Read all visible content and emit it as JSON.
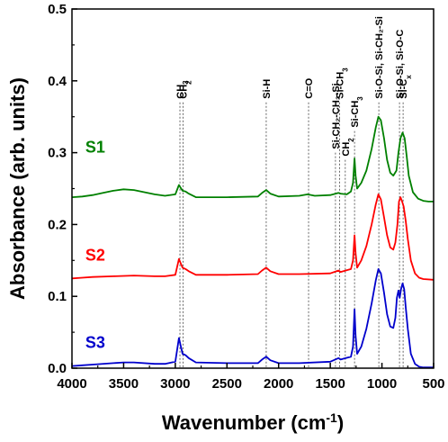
{
  "chart_data": {
    "type": "line",
    "xlabel": "Wavenumber (cm⁻¹)",
    "ylabel": "Absorbance (arb. units)",
    "xlim": [
      4000,
      500
    ],
    "ylim": [
      0,
      0.5
    ],
    "x_reversed": true,
    "grid": false,
    "legend": "none",
    "x_ticks": [
      4000,
      3500,
      3000,
      2500,
      2000,
      1500,
      1000,
      500
    ],
    "y_ticks": [
      0.0,
      0.1,
      0.2,
      0.3,
      0.4,
      0.5
    ],
    "y_tick_labels": [
      "0.0",
      "0.1",
      "0.2",
      "0.3",
      "0.4",
      "0.5"
    ],
    "series": [
      {
        "name": "S1",
        "color": "#008000",
        "label_pos": [
          3870,
          0.3
        ],
        "points": [
          [
            4000,
            0.238
          ],
          [
            3900,
            0.239
          ],
          [
            3800,
            0.241
          ],
          [
            3700,
            0.244
          ],
          [
            3600,
            0.247
          ],
          [
            3500,
            0.249
          ],
          [
            3400,
            0.248
          ],
          [
            3300,
            0.245
          ],
          [
            3200,
            0.242
          ],
          [
            3100,
            0.24
          ],
          [
            3000,
            0.242
          ],
          [
            2965,
            0.255
          ],
          [
            2930,
            0.247
          ],
          [
            2900,
            0.246
          ],
          [
            2870,
            0.243
          ],
          [
            2800,
            0.238
          ],
          [
            2500,
            0.238
          ],
          [
            2200,
            0.239
          ],
          [
            2160,
            0.244
          ],
          [
            2120,
            0.248
          ],
          [
            2080,
            0.243
          ],
          [
            2000,
            0.239
          ],
          [
            1800,
            0.24
          ],
          [
            1720,
            0.242
          ],
          [
            1650,
            0.24
          ],
          [
            1500,
            0.241
          ],
          [
            1420,
            0.244
          ],
          [
            1400,
            0.243
          ],
          [
            1340,
            0.242
          ],
          [
            1300,
            0.246
          ],
          [
            1280,
            0.258
          ],
          [
            1265,
            0.292
          ],
          [
            1255,
            0.268
          ],
          [
            1240,
            0.25
          ],
          [
            1200,
            0.258
          ],
          [
            1150,
            0.275
          ],
          [
            1100,
            0.305
          ],
          [
            1060,
            0.335
          ],
          [
            1035,
            0.35
          ],
          [
            1010,
            0.345
          ],
          [
            980,
            0.32
          ],
          [
            950,
            0.29
          ],
          [
            920,
            0.272
          ],
          [
            890,
            0.268
          ],
          [
            860,
            0.275
          ],
          [
            840,
            0.3
          ],
          [
            820,
            0.32
          ],
          [
            800,
            0.328
          ],
          [
            780,
            0.32
          ],
          [
            760,
            0.295
          ],
          [
            740,
            0.268
          ],
          [
            700,
            0.245
          ],
          [
            650,
            0.236
          ],
          [
            600,
            0.233
          ],
          [
            550,
            0.232
          ],
          [
            500,
            0.232
          ]
        ]
      },
      {
        "name": "S2",
        "color": "#ff0000",
        "label_pos": [
          3870,
          0.15
        ],
        "points": [
          [
            4000,
            0.125
          ],
          [
            3900,
            0.126
          ],
          [
            3800,
            0.127
          ],
          [
            3600,
            0.128
          ],
          [
            3400,
            0.129
          ],
          [
            3200,
            0.128
          ],
          [
            3100,
            0.128
          ],
          [
            3000,
            0.13
          ],
          [
            2965,
            0.152
          ],
          [
            2930,
            0.14
          ],
          [
            2900,
            0.138
          ],
          [
            2870,
            0.135
          ],
          [
            2800,
            0.13
          ],
          [
            2500,
            0.13
          ],
          [
            2200,
            0.131
          ],
          [
            2160,
            0.136
          ],
          [
            2120,
            0.14
          ],
          [
            2080,
            0.135
          ],
          [
            2000,
            0.131
          ],
          [
            1800,
            0.131
          ],
          [
            1500,
            0.132
          ],
          [
            1420,
            0.136
          ],
          [
            1400,
            0.134
          ],
          [
            1300,
            0.138
          ],
          [
            1280,
            0.15
          ],
          [
            1265,
            0.185
          ],
          [
            1255,
            0.16
          ],
          [
            1240,
            0.14
          ],
          [
            1200,
            0.15
          ],
          [
            1150,
            0.17
          ],
          [
            1100,
            0.2
          ],
          [
            1060,
            0.228
          ],
          [
            1035,
            0.242
          ],
          [
            1010,
            0.235
          ],
          [
            980,
            0.21
          ],
          [
            950,
            0.185
          ],
          [
            920,
            0.168
          ],
          [
            890,
            0.165
          ],
          [
            870,
            0.175
          ],
          [
            850,
            0.2
          ],
          [
            835,
            0.232
          ],
          [
            820,
            0.238
          ],
          [
            805,
            0.232
          ],
          [
            790,
            0.225
          ],
          [
            770,
            0.205
          ],
          [
            750,
            0.18
          ],
          [
            720,
            0.15
          ],
          [
            680,
            0.132
          ],
          [
            640,
            0.126
          ],
          [
            600,
            0.124
          ],
          [
            500,
            0.123
          ]
        ]
      },
      {
        "name": "S3",
        "color": "#0000cc",
        "label_pos": [
          3870,
          0.028
        ],
        "points": [
          [
            4000,
            0.003
          ],
          [
            3900,
            0.004
          ],
          [
            3800,
            0.005
          ],
          [
            3600,
            0.007
          ],
          [
            3500,
            0.008
          ],
          [
            3400,
            0.008
          ],
          [
            3200,
            0.006
          ],
          [
            3100,
            0.006
          ],
          [
            3000,
            0.009
          ],
          [
            2965,
            0.042
          ],
          [
            2930,
            0.02
          ],
          [
            2900,
            0.018
          ],
          [
            2870,
            0.014
          ],
          [
            2800,
            0.008
          ],
          [
            2500,
            0.007
          ],
          [
            2200,
            0.007
          ],
          [
            2160,
            0.012
          ],
          [
            2120,
            0.016
          ],
          [
            2080,
            0.011
          ],
          [
            2000,
            0.007
          ],
          [
            1800,
            0.007
          ],
          [
            1500,
            0.009
          ],
          [
            1420,
            0.014
          ],
          [
            1400,
            0.012
          ],
          [
            1300,
            0.016
          ],
          [
            1280,
            0.03
          ],
          [
            1265,
            0.082
          ],
          [
            1255,
            0.045
          ],
          [
            1240,
            0.02
          ],
          [
            1200,
            0.03
          ],
          [
            1150,
            0.055
          ],
          [
            1100,
            0.09
          ],
          [
            1060,
            0.122
          ],
          [
            1035,
            0.138
          ],
          [
            1010,
            0.132
          ],
          [
            980,
            0.105
          ],
          [
            950,
            0.075
          ],
          [
            920,
            0.058
          ],
          [
            890,
            0.056
          ],
          [
            870,
            0.07
          ],
          [
            855,
            0.098
          ],
          [
            840,
            0.108
          ],
          [
            828,
            0.098
          ],
          [
            815,
            0.11
          ],
          [
            800,
            0.118
          ],
          [
            785,
            0.11
          ],
          [
            770,
            0.085
          ],
          [
            750,
            0.055
          ],
          [
            720,
            0.02
          ],
          [
            680,
            0.006
          ],
          [
            640,
            0.002
          ],
          [
            600,
            0.001
          ],
          [
            500,
            0.001
          ]
        ]
      }
    ],
    "annotations": [
      {
        "label": "CH",
        "sub": "3",
        "x": 2955,
        "line_top": 0.37
      },
      {
        "label": "CH",
        "sub": "2",
        "x": 2925,
        "line_top": 0.37
      },
      {
        "label": "Si-H",
        "x": 2120,
        "line_top": 0.37
      },
      {
        "label": "C=O",
        "x": 1710,
        "line_top": 0.37
      },
      {
        "label": "Si-CH₂-CH₂-Si",
        "x": 1450,
        "line_top": 0.3
      },
      {
        "label": "Si-CH",
        "sub": "3",
        "x": 1410,
        "line_top": 0.37
      },
      {
        "label": "CH",
        "sub": "2",
        "x": 1355,
        "line_top": 0.29
      },
      {
        "label": "Si-CH",
        "sub": "3",
        "x": 1265,
        "line_top": 0.33
      },
      {
        "label": "Si-O-Si, Si-CH₂-Si",
        "x": 1030,
        "line_top": 0.37
      },
      {
        "label": "Si-O-Si, Si-O-C",
        "x": 830,
        "line_top": 0.37
      },
      {
        "label": "Si-C",
        "sub": "x",
        "x": 795,
        "line_top": 0.37
      }
    ]
  }
}
